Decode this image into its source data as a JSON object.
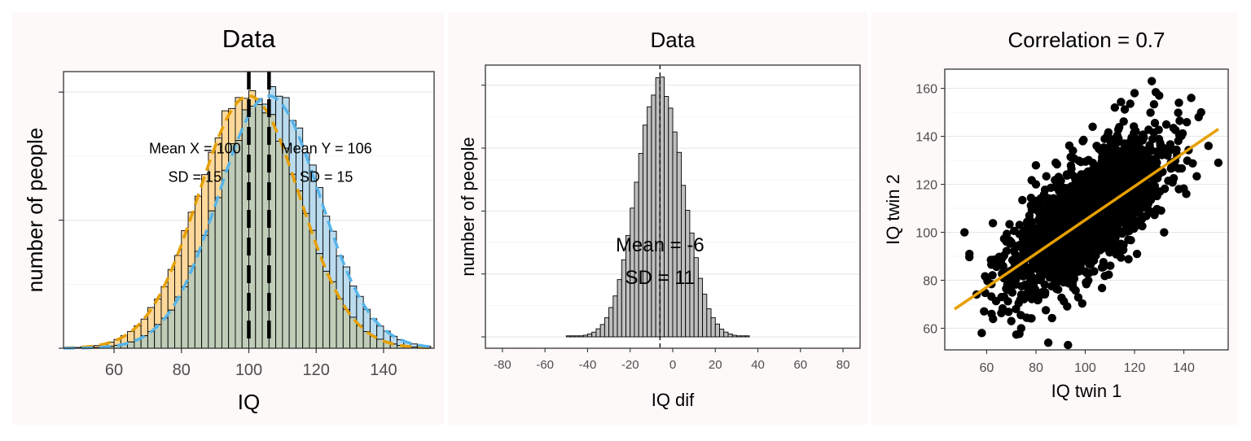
{
  "colors": {
    "panel_bg": "#fcf9f8",
    "hist_x_fill": "#fdd89a",
    "hist_y_fill": "#bbdbef",
    "hist_overlap_fill": "#c0cdb8",
    "curve_x": "#e69f00",
    "curve_y": "#56b4e9",
    "fit_line": "#e69f00",
    "dif_fill": "#bfbfbf",
    "points": "#000000",
    "grid": "#e6e6e6"
  },
  "chart_data": [
    {
      "type": "bar",
      "title": "Data",
      "xlabel": "IQ",
      "ylabel": "number of people",
      "xlim": [
        45,
        155
      ],
      "ylim": [
        0,
        1.08
      ],
      "y_tick_labels_shown": false,
      "xticks": [
        60,
        80,
        100,
        120,
        140
      ],
      "bin_width": 2,
      "series": [
        {
          "name": "X",
          "mean": 100,
          "sd": 15,
          "values_relative_density": "normal(100,15)",
          "vline": 100
        },
        {
          "name": "Y",
          "mean": 106,
          "sd": 15,
          "values_relative_density": "normal(106,15)",
          "vline": 106
        }
      ],
      "annotations": [
        {
          "text": "Mean X = 100",
          "x": 84,
          "y": 0.76
        },
        {
          "text": "SD = 15",
          "x": 84,
          "y": 0.65
        },
        {
          "text": "Mean Y = 106",
          "x": 123,
          "y": 0.76
        },
        {
          "text": "SD = 15",
          "x": 123,
          "y": 0.65
        }
      ]
    },
    {
      "type": "bar",
      "title": "Data",
      "xlabel": "IQ dif",
      "ylabel": "number of people",
      "xlim": [
        -88,
        88
      ],
      "ylim": [
        0,
        1.08
      ],
      "y_tick_labels_shown": false,
      "xticks": [
        -80,
        -60,
        -40,
        -20,
        0,
        20,
        40,
        60,
        80
      ],
      "bin_width": 2,
      "series": [
        {
          "mean": -6,
          "sd": 11,
          "range": [
            -50,
            36
          ],
          "vline": -6
        }
      ],
      "annotations": [
        {
          "text": "Mean = -6",
          "x": -6,
          "y": 0.34
        },
        {
          "text": "SD = 11",
          "x": -6,
          "y": 0.21
        }
      ]
    },
    {
      "type": "scatter",
      "title": "Correlation = 0.7",
      "xlabel": "IQ twin 1",
      "ylabel": "IQ twin 2",
      "xlim": [
        43,
        158
      ],
      "ylim": [
        51,
        168
      ],
      "xticks": [
        60,
        80,
        100,
        120,
        140
      ],
      "yticks": [
        60,
        80,
        100,
        120,
        140,
        160
      ],
      "fit_line": {
        "x": [
          47,
          154
        ],
        "y": [
          68,
          143
        ]
      },
      "points_summary": {
        "count_approx": 2000,
        "mean": [
          100,
          106
        ],
        "sd": [
          15,
          15
        ],
        "correlation": 0.7
      },
      "outlier_points": [
        {
          "x": 53,
          "y": 91
        },
        {
          "x": 51,
          "y": 100
        },
        {
          "x": 58,
          "y": 58
        },
        {
          "x": 62,
          "y": 66
        },
        {
          "x": 85,
          "y": 54
        },
        {
          "x": 93,
          "y": 53
        },
        {
          "x": 74,
          "y": 60
        },
        {
          "x": 99,
          "y": 138
        },
        {
          "x": 103,
          "y": 144
        },
        {
          "x": 112,
          "y": 152
        },
        {
          "x": 127,
          "y": 163
        },
        {
          "x": 154,
          "y": 129
        },
        {
          "x": 143,
          "y": 156
        },
        {
          "x": 138,
          "y": 154
        },
        {
          "x": 147,
          "y": 150
        },
        {
          "x": 95,
          "y": 134
        },
        {
          "x": 150,
          "y": 136
        },
        {
          "x": 120,
          "y": 158
        },
        {
          "x": 130,
          "y": 157
        },
        {
          "x": 146,
          "y": 148
        },
        {
          "x": 66,
          "y": 73
        },
        {
          "x": 70,
          "y": 63
        },
        {
          "x": 141,
          "y": 116
        },
        {
          "x": 121,
          "y": 91
        },
        {
          "x": 132,
          "y": 100
        },
        {
          "x": 88,
          "y": 129
        },
        {
          "x": 80,
          "y": 120
        },
        {
          "x": 138,
          "y": 118
        }
      ]
    }
  ]
}
